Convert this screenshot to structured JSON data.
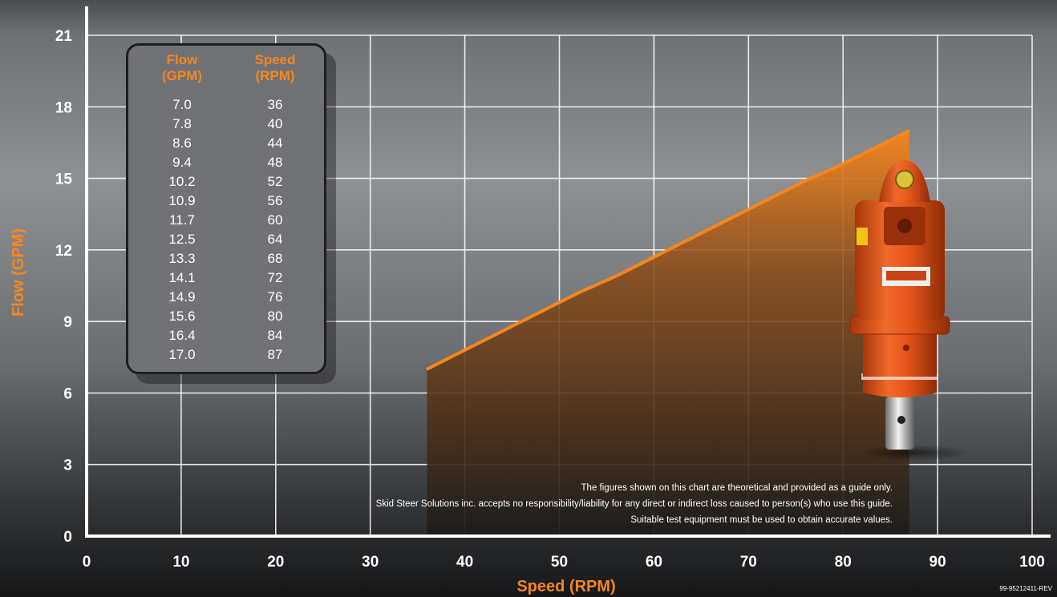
{
  "chart_data": {
    "type": "area",
    "xlabel": "Speed (RPM)",
    "ylabel": "Flow (GPM)",
    "xlim": [
      0,
      100
    ],
    "ylim": [
      0,
      21
    ],
    "x_ticks": [
      "0",
      "10",
      "20",
      "30",
      "40",
      "50",
      "60",
      "70",
      "80",
      "90",
      "100"
    ],
    "y_ticks": [
      "0",
      "3",
      "6",
      "9",
      "12",
      "15",
      "18",
      "21"
    ],
    "grid": true,
    "series": [
      {
        "x": [
          36,
          40,
          44,
          48,
          52,
          56,
          60,
          64,
          68,
          72,
          76,
          80,
          84,
          87
        ],
        "y": [
          7.0,
          7.8,
          8.6,
          9.4,
          10.2,
          10.9,
          11.7,
          12.5,
          13.3,
          14.1,
          14.9,
          15.6,
          16.4,
          17.0
        ]
      }
    ],
    "table": {
      "headers": [
        [
          "Flow",
          "(GPM)"
        ],
        [
          "Speed",
          "(RPM)"
        ]
      ],
      "rows": [
        [
          "7.0",
          "36"
        ],
        [
          "7.8",
          "40"
        ],
        [
          "8.6",
          "44"
        ],
        [
          "9.4",
          "48"
        ],
        [
          "10.2",
          "52"
        ],
        [
          "10.9",
          "56"
        ],
        [
          "11.7",
          "60"
        ],
        [
          "12.5",
          "64"
        ],
        [
          "13.3",
          "68"
        ],
        [
          "14.1",
          "72"
        ],
        [
          "14.9",
          "76"
        ],
        [
          "15.6",
          "80"
        ],
        [
          "16.4",
          "84"
        ],
        [
          "17.0",
          "87"
        ]
      ]
    },
    "disclaimer": [
      "The figures shown on this chart are theoretical and provided as a guide only.",
      "Skid Steer Solutions inc. accepts no responsibility/liability for any direct or indirect loss caused to person(s) who use this guide.",
      "Suitable test equipment must be used to obtain accurate values."
    ],
    "doc_code": "99-95212411-REV",
    "colors": {
      "accent": "#f7861e",
      "product_body": "#e5551a",
      "background": "#7a7d80"
    }
  }
}
